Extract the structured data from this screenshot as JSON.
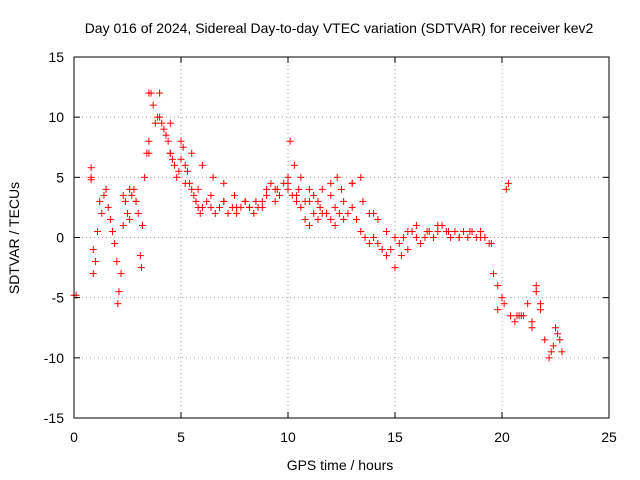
{
  "chart_data": {
    "type": "scatter",
    "title": "Day 016 of 2024, Sidereal Day-to-day VTEC variation (SDTVAR) for receiver kev2",
    "xlabel": "GPS time / hours",
    "ylabel": "SDTVAR / TECUs",
    "xlim": [
      0,
      25
    ],
    "ylim": [
      -15,
      15
    ],
    "xticks": [
      "0",
      "5",
      "10",
      "15",
      "20",
      "25"
    ],
    "yticks": [
      "-15",
      "-10",
      "-5",
      "0",
      "5",
      "10",
      "15"
    ],
    "grid": true,
    "marker": "+",
    "color": "#ff0000",
    "series": [
      {
        "name": "SDTVAR",
        "x": [
          0.0,
          0.1,
          0.8,
          0.8,
          0.8,
          0.9,
          0.9,
          1.0,
          1.1,
          1.2,
          1.3,
          1.4,
          1.5,
          1.6,
          1.7,
          1.8,
          1.9,
          2.0,
          2.05,
          2.1,
          2.2,
          2.3,
          2.4,
          2.5,
          2.6,
          2.7,
          2.8,
          2.9,
          3.0,
          3.1,
          3.15,
          3.2,
          3.3,
          3.4,
          3.5,
          3.6,
          3.7,
          3.8,
          3.9,
          4.0,
          4.1,
          4.2,
          4.3,
          4.4,
          4.5,
          4.6,
          4.7,
          4.8,
          4.9,
          5.0,
          5.1,
          5.2,
          5.3,
          5.4,
          5.5,
          5.6,
          5.7,
          5.8,
          5.9,
          6.0,
          6.2,
          6.4,
          6.6,
          6.8,
          7.0,
          7.2,
          7.4,
          7.6,
          7.8,
          8.0,
          8.2,
          8.4,
          8.6,
          8.8,
          9.0,
          9.2,
          9.4,
          9.6,
          9.8,
          10.0,
          10.2,
          10.4,
          10.6,
          10.8,
          11.0,
          11.2,
          11.4,
          11.6,
          11.8,
          12.0,
          12.2,
          12.4,
          12.6,
          12.8,
          13.0,
          13.2,
          13.4,
          13.6,
          13.8,
          14.0,
          14.2,
          14.4,
          14.6,
          14.8,
          15.0,
          15.2,
          15.4,
          15.6,
          15.8,
          16.0,
          16.2,
          16.4,
          16.6,
          16.8,
          17.0,
          17.2,
          17.4,
          17.6,
          17.8,
          18.0,
          18.2,
          18.4,
          18.6,
          18.8,
          19.0,
          19.2,
          19.4,
          19.6,
          19.8,
          20.0,
          20.2,
          20.4,
          20.6,
          20.8,
          21.0,
          21.2,
          21.4,
          21.6,
          21.8,
          22.0,
          22.2,
          22.4,
          22.6,
          22.8,
          3.5,
          4.0,
          4.5,
          5.0,
          5.5,
          6.0,
          6.5,
          7.0,
          7.5,
          8.0,
          8.5,
          9.0,
          9.5,
          10.0,
          10.5,
          11.0,
          11.5,
          12.0,
          12.5,
          13.0,
          13.5,
          14.0,
          2.3,
          2.6,
          2.9,
          3.2,
          3.5,
          4.5,
          5.2,
          5.8,
          6.4,
          7.0,
          7.6,
          8.2,
          8.8,
          9.4,
          10.0,
          10.4,
          10.8,
          11.2,
          11.6,
          12.0,
          12.3,
          10.1,
          10.3,
          10.6,
          11.0,
          11.4,
          11.8,
          12.2,
          12.6,
          13.0,
          13.4,
          13.8,
          14.2,
          14.6,
          15.0,
          15.3,
          15.6,
          16.0,
          16.5,
          17.0,
          17.5,
          18.0,
          18.5,
          19.0,
          19.5,
          19.8,
          20.1,
          20.3,
          20.7,
          20.9,
          21.4,
          21.6,
          21.8,
          22.3,
          22.5,
          22.7
        ],
        "y": [
          -4.8,
          -4.8,
          5.0,
          5.8,
          4.8,
          -1.0,
          -3.0,
          -2.0,
          0.5,
          3.0,
          2.0,
          3.5,
          4.0,
          2.5,
          1.5,
          0.5,
          -0.5,
          -2.0,
          -5.5,
          -4.5,
          -3.0,
          1.0,
          3.0,
          2.0,
          1.5,
          3.5,
          4.0,
          3.0,
          2.0,
          -1.5,
          -2.5,
          1.0,
          5.0,
          7.0,
          8.0,
          12.0,
          11.0,
          9.5,
          10.0,
          12.0,
          9.5,
          9.0,
          8.5,
          8.0,
          7.0,
          6.5,
          6.0,
          5.0,
          5.5,
          6.5,
          7.5,
          6.0,
          5.5,
          4.5,
          4.0,
          3.5,
          3.0,
          2.5,
          2.0,
          2.5,
          3.0,
          2.5,
          2.0,
          2.5,
          3.0,
          2.0,
          2.5,
          2.0,
          2.5,
          3.0,
          2.5,
          2.0,
          2.5,
          3.0,
          4.0,
          4.5,
          4.0,
          3.5,
          4.5,
          4.0,
          3.5,
          3.0,
          2.5,
          1.5,
          1.0,
          2.0,
          1.5,
          2.0,
          2.0,
          1.5,
          2.5,
          2.0,
          1.5,
          2.0,
          2.5,
          1.5,
          0.5,
          0.0,
          -0.5,
          0.0,
          -0.5,
          -1.0,
          -1.5,
          -1.0,
          -2.5,
          -0.5,
          0.0,
          0.5,
          0.5,
          0.0,
          -0.5,
          0.0,
          0.5,
          0.0,
          0.5,
          1.0,
          0.5,
          0.0,
          0.5,
          0.0,
          0.5,
          0.0,
          0.5,
          0.0,
          0.5,
          0.0,
          -0.5,
          -3.0,
          -6.0,
          -5.0,
          4.0,
          -6.5,
          -7.0,
          -6.5,
          -6.5,
          -5.5,
          -7.5,
          -4.5,
          -5.5,
          -8.5,
          -10.0,
          -9.0,
          -8.0,
          -9.5,
          12.0,
          10.0,
          9.5,
          8.0,
          7.0,
          6.0,
          5.0,
          4.5,
          3.5,
          3.0,
          3.0,
          3.5,
          4.0,
          5.0,
          4.0,
          3.0,
          2.5,
          3.5,
          4.0,
          4.5,
          3.0,
          2.0,
          3.5,
          4.0,
          3.0,
          1.0,
          7.0,
          7.0,
          4.5,
          4.0,
          3.5,
          3.0,
          2.5,
          2.5,
          2.5,
          3.0,
          4.5,
          3.5,
          3.0,
          3.5,
          4.0,
          4.5,
          5.0,
          8.0,
          6.0,
          5.0,
          4.0,
          3.0,
          2.0,
          1.0,
          3.0,
          4.5,
          5.0,
          2.0,
          1.5,
          0.5,
          0.0,
          -1.5,
          -1.0,
          1.0,
          0.5,
          1.0,
          0.5,
          0.0,
          0.5,
          0.0,
          -0.5,
          -4.0,
          -5.5,
          4.5,
          -6.5,
          -6.5,
          -7.0,
          -4.0,
          -6.0,
          -9.5,
          -7.5,
          -8.5
        ]
      }
    ]
  }
}
